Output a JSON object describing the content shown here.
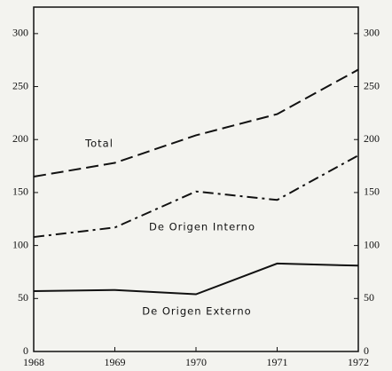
{
  "chart_data": {
    "type": "line",
    "x": [
      1968,
      1969,
      1970,
      1971,
      1972
    ],
    "xlim": [
      1968,
      1972
    ],
    "xticks": [
      1968,
      1969,
      1970,
      1971,
      1972
    ],
    "ylim": [
      0,
      325
    ],
    "yticks": [
      0,
      50,
      100,
      150,
      200,
      250,
      300
    ],
    "mirror_y": true,
    "grid": false,
    "series": [
      {
        "name": "Total",
        "color": "#111111",
        "dash": "dashed",
        "values": [
          165,
          178,
          204,
          224,
          266
        ]
      },
      {
        "name": "De Origen Interno",
        "color": "#111111",
        "dash": "dashdot",
        "values": [
          108,
          117,
          151,
          143,
          185
        ]
      },
      {
        "name": "De Origen Externo",
        "color": "#111111",
        "dash": "solid",
        "values": [
          57,
          58,
          54,
          83,
          81
        ]
      }
    ]
  }
}
